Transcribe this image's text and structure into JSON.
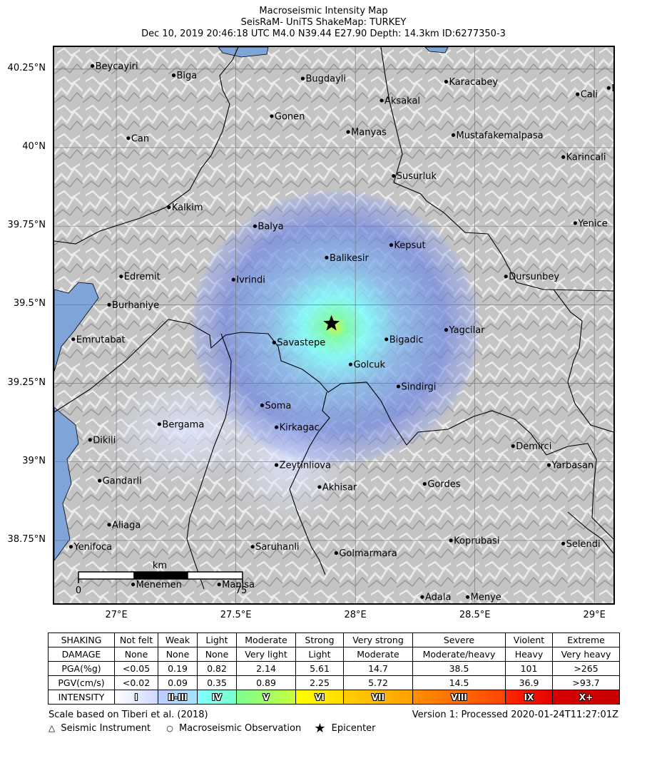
{
  "title": {
    "line1": "Macroseismic Intensity Map",
    "line2": "SeisRaM- UniTS ShakeMap: TURKEY",
    "line3": "Dec 10, 2019 20:46:18 UTC M4.0 N39.44 E27.90 Depth: 14.3km ID:6277350-3"
  },
  "map": {
    "lon_range": [
      26.74,
      29.08
    ],
    "lat_range": [
      38.55,
      40.32
    ],
    "lat_ticks": [
      {
        "label": "40.25°N",
        "lat": 40.25
      },
      {
        "label": "40°N",
        "lat": 40.0
      },
      {
        "label": "39.75°N",
        "lat": 39.75
      },
      {
        "label": "39.5°N",
        "lat": 39.5
      },
      {
        "label": "39.25°N",
        "lat": 39.25
      },
      {
        "label": "39°N",
        "lat": 39.0
      },
      {
        "label": "38.75°N",
        "lat": 38.75
      }
    ],
    "lon_ticks": [
      {
        "label": "27°E",
        "lon": 27.0
      },
      {
        "label": "27.5°E",
        "lon": 27.5
      },
      {
        "label": "28°E",
        "lon": 28.0
      },
      {
        "label": "28.5°E",
        "lon": 28.5
      },
      {
        "label": "29°E",
        "lon": 29.0
      }
    ],
    "epicenter": {
      "lon": 27.9,
      "lat": 39.44
    },
    "cities": [
      {
        "name": "Beycayiri",
        "lon": 26.9,
        "lat": 40.26
      },
      {
        "name": "Biga",
        "lon": 27.24,
        "lat": 40.23
      },
      {
        "name": "Bugdayli",
        "lon": 27.78,
        "lat": 40.22
      },
      {
        "name": "Karacabey",
        "lon": 28.38,
        "lat": 40.21
      },
      {
        "name": "Bursa",
        "lon": 29.06,
        "lat": 40.19
      },
      {
        "name": "Cali",
        "lon": 28.93,
        "lat": 40.17
      },
      {
        "name": "Aksakal",
        "lon": 28.11,
        "lat": 40.15
      },
      {
        "name": "Gonen",
        "lon": 27.65,
        "lat": 40.1
      },
      {
        "name": "Can",
        "lon": 27.05,
        "lat": 40.03
      },
      {
        "name": "Manyas",
        "lon": 27.97,
        "lat": 40.05
      },
      {
        "name": "Mustafakemalpasa",
        "lon": 28.41,
        "lat": 40.04
      },
      {
        "name": "Karincali",
        "lon": 28.87,
        "lat": 39.97
      },
      {
        "name": "Susurluk",
        "lon": 28.16,
        "lat": 39.91
      },
      {
        "name": "Kalkim",
        "lon": 27.22,
        "lat": 39.81
      },
      {
        "name": "Yenice",
        "lon": 28.92,
        "lat": 39.76
      },
      {
        "name": "Balya",
        "lon": 27.58,
        "lat": 39.75
      },
      {
        "name": "Kepsut",
        "lon": 28.15,
        "lat": 39.69
      },
      {
        "name": "Balikesir",
        "lon": 27.88,
        "lat": 39.65
      },
      {
        "name": "Edremit",
        "lon": 27.02,
        "lat": 39.59
      },
      {
        "name": "Dursunbey",
        "lon": 28.63,
        "lat": 39.59
      },
      {
        "name": "Ivrindi",
        "lon": 27.49,
        "lat": 39.58
      },
      {
        "name": "Burhaniye",
        "lon": 26.97,
        "lat": 39.5
      },
      {
        "name": "Yagcilar",
        "lon": 28.38,
        "lat": 39.42
      },
      {
        "name": "Bigadic",
        "lon": 28.13,
        "lat": 39.39
      },
      {
        "name": "Emrutabat",
        "lon": 26.82,
        "lat": 39.39
      },
      {
        "name": "Savastepe",
        "lon": 27.66,
        "lat": 39.38
      },
      {
        "name": "Golcuk",
        "lon": 27.98,
        "lat": 39.31
      },
      {
        "name": "Sindirgi",
        "lon": 28.18,
        "lat": 39.24
      },
      {
        "name": "Soma",
        "lon": 27.61,
        "lat": 39.18
      },
      {
        "name": "Bergama",
        "lon": 27.18,
        "lat": 39.12
      },
      {
        "name": "Kirkagac",
        "lon": 27.67,
        "lat": 39.11
      },
      {
        "name": "Dikili",
        "lon": 26.89,
        "lat": 39.07
      },
      {
        "name": "Demirci",
        "lon": 28.66,
        "lat": 39.05
      },
      {
        "name": "Yarbasan",
        "lon": 28.81,
        "lat": 38.99
      },
      {
        "name": "Zeytinliova",
        "lon": 27.67,
        "lat": 38.99
      },
      {
        "name": "Gandarli",
        "lon": 26.93,
        "lat": 38.94
      },
      {
        "name": "Gordes",
        "lon": 28.29,
        "lat": 38.93
      },
      {
        "name": "Akhisar",
        "lon": 27.85,
        "lat": 38.92
      },
      {
        "name": "Aliaga",
        "lon": 26.97,
        "lat": 38.8
      },
      {
        "name": "Koprubasi",
        "lon": 28.4,
        "lat": 38.75
      },
      {
        "name": "Selendi",
        "lon": 28.87,
        "lat": 38.74
      },
      {
        "name": "Yenifoca",
        "lon": 26.81,
        "lat": 38.73
      },
      {
        "name": "Saruhanli",
        "lon": 27.57,
        "lat": 38.73
      },
      {
        "name": "Golmarmara",
        "lon": 27.92,
        "lat": 38.71
      },
      {
        "name": "Menemen",
        "lon": 27.07,
        "lat": 38.61
      },
      {
        "name": "Manisa",
        "lon": 27.43,
        "lat": 38.61
      },
      {
        "name": "Adala",
        "lon": 28.28,
        "lat": 38.57
      },
      {
        "name": "Menye",
        "lon": 28.47,
        "lat": 38.57
      }
    ],
    "scale_bar": {
      "unit": "km",
      "min_label": "0",
      "max_label": "75"
    },
    "colors": {
      "water": "#7ea4d8",
      "terrain": "#c9c9c9",
      "border": "#000000",
      "epicenter": "#000000"
    }
  },
  "legend": {
    "rows": [
      {
        "header": "SHAKING",
        "cells": [
          "Not felt",
          "Weak",
          "Light",
          "Moderate",
          "Strong",
          "Very strong",
          "Severe",
          "Violent",
          "Extreme"
        ]
      },
      {
        "header": "DAMAGE",
        "cells": [
          "None",
          "None",
          "None",
          "Very light",
          "Light",
          "Moderate",
          "Moderate/heavy",
          "Heavy",
          "Very heavy"
        ]
      },
      {
        "header": "PGA(%g)",
        "cells": [
          "<0.05",
          "0.19",
          "0.82",
          "2.14",
          "5.61",
          "14.7",
          "38.5",
          "101",
          ">265"
        ]
      },
      {
        "header": "PGV(cm/s)",
        "cells": [
          "<0.02",
          "0.09",
          "0.35",
          "0.89",
          "2.25",
          "5.72",
          "14.5",
          "36.9",
          ">93.7"
        ]
      }
    ],
    "intensity": {
      "header": "INTENSITY",
      "cells": [
        "I",
        "II-III",
        "IV",
        "V",
        "VI",
        "VII",
        "VIII",
        "IX",
        "X+"
      ],
      "colors": [
        [
          "#ffffff",
          "#cdd8ff"
        ],
        [
          "#bfccff",
          "#a0e6ff"
        ],
        [
          "#80ffff",
          "#7affcc"
        ],
        [
          "#7aff93",
          "#c8ff3c"
        ],
        [
          "#ffff00",
          "#ffdc00"
        ],
        [
          "#ffd000",
          "#ffa000"
        ],
        [
          "#ff9000",
          "#ff4400"
        ],
        [
          "#ff2800",
          "#e40000"
        ],
        [
          "#d80000",
          "#c80000"
        ]
      ]
    }
  },
  "footer": {
    "scale_note": "Scale based on Tiberi et al. (2018)",
    "version": "Version 1: Processed 2020-01-24T11:27:01Z",
    "instrument_label": "Seismic Instrument",
    "observation_label": "Macroseismic Observation",
    "epicenter_label": "Epicenter"
  }
}
